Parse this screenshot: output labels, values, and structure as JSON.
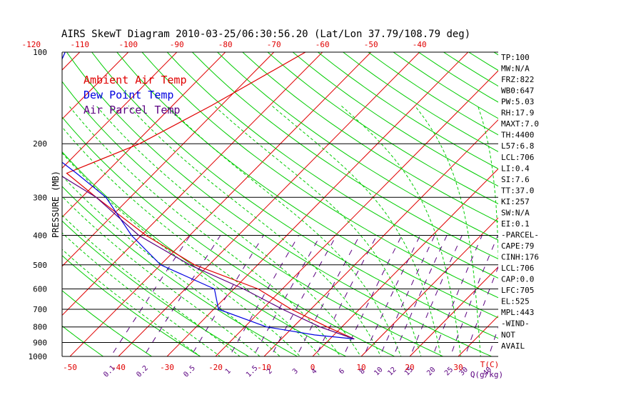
{
  "chart_data": {
    "type": "line",
    "title": "AIRS SkewT Diagram 2010-03-25/06:30:56.20 (Lat/Lon 37.79/108.79 deg)",
    "ylabel": "PRESSURE (MB)",
    "pressure_ticks": [
      100,
      200,
      300,
      400,
      500,
      600,
      700,
      800,
      900,
      1000
    ],
    "ylim": [
      1000,
      100
    ],
    "bottom_temp_ticks": [
      -50,
      -40,
      -30,
      -20,
      -10,
      0,
      10,
      20,
      30
    ],
    "bottom_temp_unit": "T(C)",
    "top_temp_ticks": [
      -120,
      -110,
      -100,
      -90,
      -80,
      -70,
      -60,
      -50,
      -40
    ],
    "mixing_ratio_ticks": [
      "0.1",
      "0.2",
      "0.5",
      "1",
      "1.5",
      "2",
      "3",
      "4",
      "6",
      "8",
      "10",
      "12",
      "15",
      "20",
      "25",
      "30",
      "40"
    ],
    "mixing_ratio_unit": "Q(g/kg)",
    "legend": [
      "Ambient Air Temp",
      "Dew Point Temp",
      "Air Parcel Temp"
    ],
    "colors": {
      "ambient": "#e00000",
      "dewpoint": "#0000e0",
      "parcel": "#5a0080",
      "isotherm": "#e00000",
      "dry_adiabat": "#00cc00",
      "moist_adiabat": "#00cc00",
      "mixing_ratio": "#5a0080",
      "axis": "#000000"
    },
    "series": [
      {
        "name": "Ambient Air Temp",
        "points": [
          [
            100,
            -63.5
          ],
          [
            150,
            -72
          ],
          [
            200,
            -79
          ],
          [
            250,
            -88
          ],
          [
            300,
            -77
          ],
          [
            400,
            -59
          ],
          [
            500,
            -43
          ],
          [
            600,
            -25
          ],
          [
            700,
            -14
          ],
          [
            800,
            -3
          ],
          [
            876,
            5
          ]
        ]
      },
      {
        "name": "Dew Point Temp",
        "points": [
          [
            100,
            -113
          ],
          [
            150,
            -107
          ],
          [
            200,
            -100
          ],
          [
            250,
            -86
          ],
          [
            300,
            -75
          ],
          [
            400,
            -62
          ],
          [
            500,
            -50
          ],
          [
            600,
            -34
          ],
          [
            700,
            -29
          ],
          [
            800,
            -15.5
          ],
          [
            850,
            -4
          ],
          [
            876,
            5
          ]
        ]
      },
      {
        "name": "Air Parcel Temp",
        "points": [
          [
            100,
            -135
          ],
          [
            150,
            -118
          ],
          [
            200,
            -103
          ],
          [
            250,
            -90
          ],
          [
            300,
            -77
          ],
          [
            400,
            -60.5
          ],
          [
            500,
            -44
          ],
          [
            600,
            -28
          ],
          [
            700,
            -15.8
          ],
          [
            800,
            -4.5
          ],
          [
            876,
            5
          ]
        ]
      }
    ],
    "indices": [
      "TP:100",
      "MW:N/A",
      "FRZ:822",
      "WB0:647",
      "PW:5.03",
      "RH:17.9",
      "MAXT:7.0",
      "TH:4400",
      "L57:6.8",
      "LCL:706",
      "LI:0.4",
      "SI:7.6",
      "TT:37.0",
      "KI:257",
      "SW:N/A",
      "EI:0.1",
      "-PARCEL-",
      "CAPE:79",
      "CINH:176",
      "LCL:706",
      "CAP:0.0",
      "LFC:705",
      "EL:525",
      "MPL:443",
      "-WIND-",
      "NOT",
      "AVAIL"
    ]
  }
}
